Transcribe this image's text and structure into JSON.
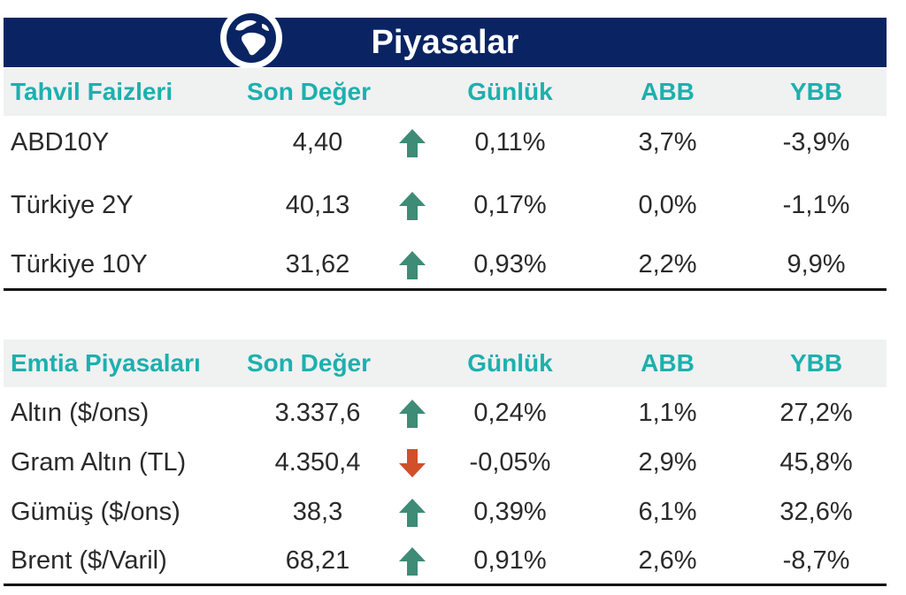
{
  "banner": {
    "title": "Piyasalar"
  },
  "colors": {
    "banner": "#0a2463",
    "header_text": "#1cb0ae",
    "up": "#3e8b76",
    "down": "#d0502a"
  },
  "bonds": {
    "headers": {
      "name": "Tahvil Faizleri",
      "last": "Son Değer",
      "daily": "Günlük",
      "mtd": "ABB",
      "ytd": "YBB"
    },
    "rows": [
      {
        "name": "ABD10Y",
        "last": "4,40",
        "trend": "up",
        "daily": "0,11%",
        "mtd": "3,7%",
        "ytd": "-3,9%"
      },
      {
        "name": "Türkiye 2Y",
        "last": "40,13",
        "trend": "up",
        "daily": "0,17%",
        "mtd": "0,0%",
        "ytd": "-1,1%"
      },
      {
        "name": "Türkiye 10Y",
        "last": "31,62",
        "trend": "up",
        "daily": "0,93%",
        "mtd": "2,2%",
        "ytd": "9,9%"
      }
    ]
  },
  "commodities": {
    "headers": {
      "name": "Emtia Piyasaları",
      "last": "Son Değer",
      "daily": "Günlük",
      "mtd": "ABB",
      "ytd": "YBB"
    },
    "rows": [
      {
        "name": "Altın ($/ons)",
        "last": "3.337,6",
        "trend": "up",
        "daily": "0,24%",
        "mtd": "1,1%",
        "ytd": "27,2%"
      },
      {
        "name": "Gram Altın (TL)",
        "last": "4.350,4",
        "trend": "down",
        "daily": "-0,05%",
        "mtd": "2,9%",
        "ytd": "45,8%"
      },
      {
        "name": "Gümüş ($/ons)",
        "last": "38,3",
        "trend": "up",
        "daily": "0,39%",
        "mtd": "6,1%",
        "ytd": "32,6%"
      },
      {
        "name": "Brent  ($/Varil)",
        "last": "68,21",
        "trend": "up",
        "daily": "0,91%",
        "mtd": "2,6%",
        "ytd": "-8,7%"
      }
    ]
  }
}
